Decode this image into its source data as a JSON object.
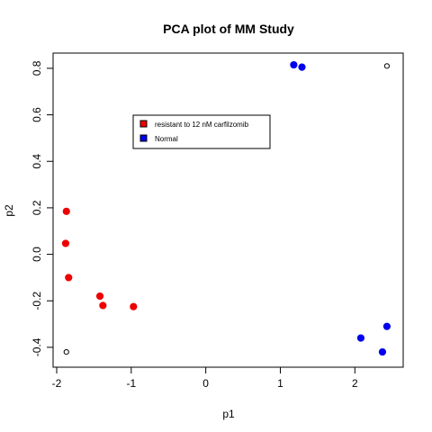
{
  "chart_data": {
    "type": "scatter",
    "title": "PCA plot of MM Study",
    "xlabel": "p1",
    "ylabel": "p2",
    "xlim": [
      -2.0,
      2.6
    ],
    "ylim": [
      -0.47,
      0.85
    ],
    "xticks": [
      {
        "value": -2,
        "label": "-2"
      },
      {
        "value": -1,
        "label": "-1"
      },
      {
        "value": 0,
        "label": "0"
      },
      {
        "value": 1,
        "label": "1"
      },
      {
        "value": 2,
        "label": "2"
      }
    ],
    "yticks": [
      {
        "value": -0.4,
        "label": "-0.4"
      },
      {
        "value": -0.2,
        "label": "-0.2"
      },
      {
        "value": 0.0,
        "label": "0.0"
      },
      {
        "value": 0.2,
        "label": "0.2"
      },
      {
        "value": 0.4,
        "label": "0.4"
      },
      {
        "value": 0.6,
        "label": "0.6"
      },
      {
        "value": 0.8,
        "label": "0.8"
      }
    ],
    "grid": false,
    "legend_position": "upper-left-center",
    "series": [
      {
        "name": "resistant to 12 nM carfilzomib",
        "color": "#ee0000",
        "marker": "filled-circle",
        "points": [
          {
            "x": -1.87,
            "y": 0.185
          },
          {
            "x": -1.88,
            "y": 0.047
          },
          {
            "x": -1.84,
            "y": -0.1
          },
          {
            "x": -1.42,
            "y": -0.18
          },
          {
            "x": -1.38,
            "y": -0.22
          },
          {
            "x": -0.97,
            "y": -0.225
          }
        ]
      },
      {
        "name": "Normal",
        "color": "#0000ee",
        "marker": "filled-circle",
        "points": [
          {
            "x": 1.18,
            "y": 0.815
          },
          {
            "x": 1.29,
            "y": 0.805
          },
          {
            "x": 2.08,
            "y": -0.36
          },
          {
            "x": 2.37,
            "y": -0.42
          },
          {
            "x": 2.43,
            "y": -0.31
          }
        ]
      }
    ],
    "extra_points": [
      {
        "x": -1.87,
        "y": -0.42,
        "marker": "open-circle"
      },
      {
        "x": 2.43,
        "y": 0.81,
        "marker": "open-circle"
      }
    ]
  }
}
